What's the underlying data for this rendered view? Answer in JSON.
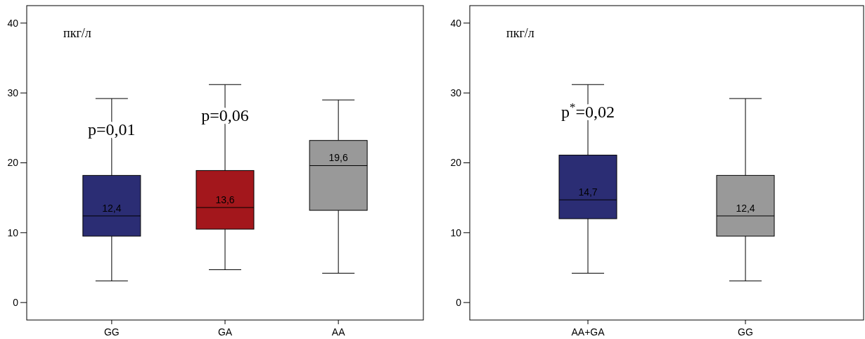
{
  "chart_data": [
    {
      "type": "box",
      "ylabel": "пкг/л",
      "categories": [
        "GG",
        "GA",
        "AA"
      ],
      "boxes": [
        {
          "low": 3.1,
          "q1": 9.5,
          "median": 12.4,
          "q3": 18.2,
          "high": 29.2
        },
        {
          "low": 4.7,
          "q1": 10.5,
          "median": 13.6,
          "q3": 18.9,
          "high": 31.2
        },
        {
          "low": 4.2,
          "q1": 13.2,
          "median": 19.6,
          "q3": 23.2,
          "high": 29.0
        }
      ],
      "colors": [
        "#2b2d74",
        "#a3171c",
        "#999999"
      ],
      "ylim": [
        -2.5,
        42.5
      ],
      "yticks": [
        0,
        10,
        20,
        30,
        40
      ],
      "annotations": [
        {
          "text": "p=0,01",
          "x": "GG",
          "y": 24
        },
        {
          "text": "p=0,06",
          "x": "GA",
          "y": 26
        },
        {
          "text": "12,4",
          "x": "GG",
          "y": 12.4
        },
        {
          "text": "13,6",
          "x": "GA",
          "y": 13.6
        },
        {
          "text": "19,6",
          "x": "AA",
          "y": 19.6
        }
      ]
    },
    {
      "type": "box",
      "ylabel": "пкг/л",
      "categories": [
        "AA+GA",
        "GG"
      ],
      "boxes": [
        {
          "low": 4.2,
          "q1": 12.0,
          "median": 14.7,
          "q3": 21.1,
          "high": 31.2
        },
        {
          "low": 3.1,
          "q1": 9.5,
          "median": 12.4,
          "q3": 18.2,
          "high": 29.2
        }
      ],
      "colors": [
        "#2b2d74",
        "#999999"
      ],
      "ylim": [
        -2.5,
        42.5
      ],
      "yticks": [
        0,
        10,
        20,
        30,
        40
      ],
      "annotations": [
        {
          "text": "p$^{*}$=0,02",
          "x": "AA+GA",
          "y": 26.5
        },
        {
          "text": "14,7",
          "x": "AA+GA",
          "y": 14.7
        },
        {
          "text": "12,4",
          "x": "GG",
          "y": 12.4
        }
      ]
    }
  ]
}
